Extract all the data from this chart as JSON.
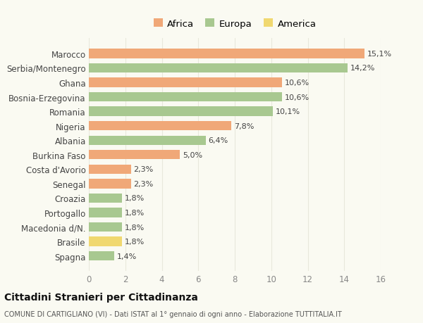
{
  "categories": [
    "Marocco",
    "Serbia/Montenegro",
    "Ghana",
    "Bosnia-Erzegovina",
    "Romania",
    "Nigeria",
    "Albania",
    "Burkina Faso",
    "Costa d'Avorio",
    "Senegal",
    "Croazia",
    "Portogallo",
    "Macedonia d/N.",
    "Brasile",
    "Spagna"
  ],
  "values": [
    15.1,
    14.2,
    10.6,
    10.6,
    10.1,
    7.8,
    6.4,
    5.0,
    2.3,
    2.3,
    1.8,
    1.8,
    1.8,
    1.8,
    1.4
  ],
  "labels": [
    "15,1%",
    "14,2%",
    "10,6%",
    "10,6%",
    "10,1%",
    "7,8%",
    "6,4%",
    "5,0%",
    "2,3%",
    "2,3%",
    "1,8%",
    "1,8%",
    "1,8%",
    "1,8%",
    "1,4%"
  ],
  "continents": [
    "Africa",
    "Europa",
    "Africa",
    "Europa",
    "Europa",
    "Africa",
    "Europa",
    "Africa",
    "Africa",
    "Africa",
    "Europa",
    "Europa",
    "Europa",
    "America",
    "Europa"
  ],
  "colors": {
    "Africa": "#F0A878",
    "Europa": "#A8C890",
    "America": "#F0D870"
  },
  "legend_labels": [
    "Africa",
    "Europa",
    "America"
  ],
  "xlim": [
    0,
    16
  ],
  "xticks": [
    0,
    2,
    4,
    6,
    8,
    10,
    12,
    14,
    16
  ],
  "title": "Cittadini Stranieri per Cittadinanza",
  "subtitle": "COMUNE DI CARTIGLIANO (VI) - Dati ISTAT al 1° gennaio di ogni anno - Elaborazione TUTTITALIA.IT",
  "background_color": "#fafaf2",
  "grid_color": "#e8e8dc",
  "bar_height": 0.65
}
